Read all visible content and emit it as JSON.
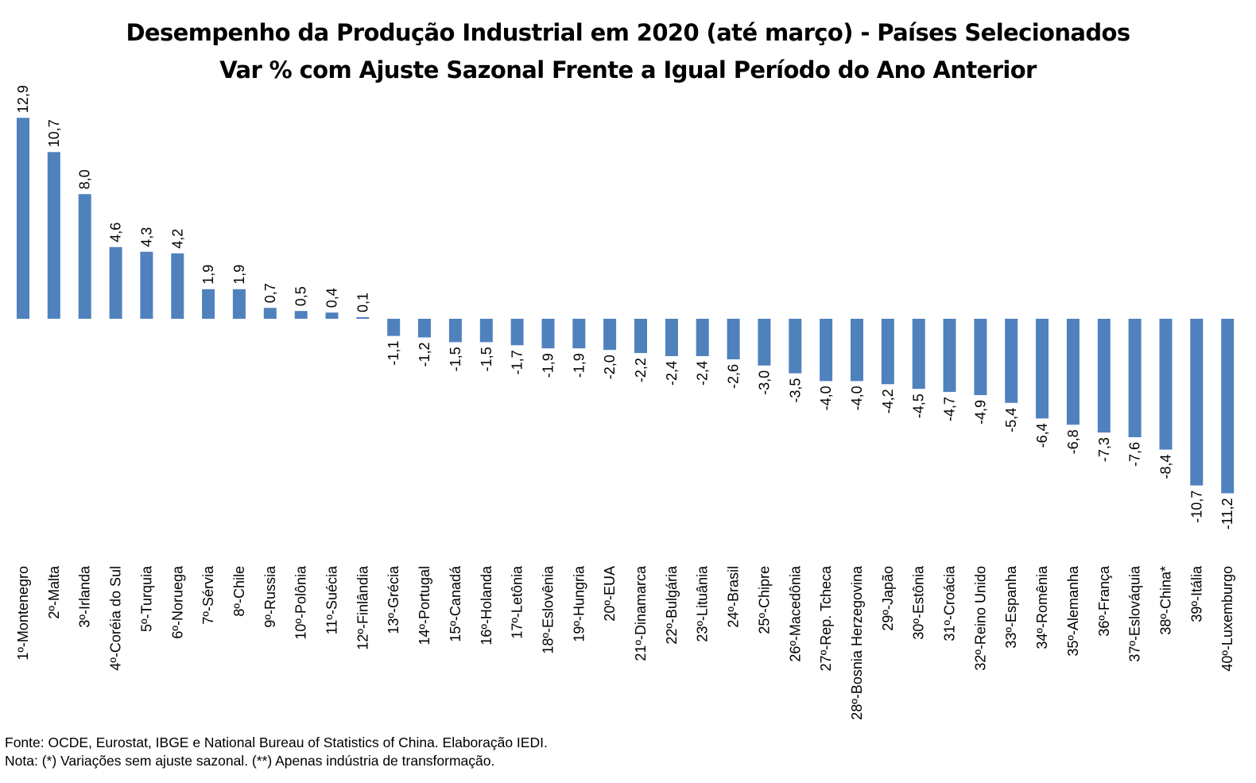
{
  "chart_data": {
    "type": "bar",
    "title": "Desempenho da Produção Industrial em 2020 (até março) - Países Selecionados",
    "subtitle": "Var % com Ajuste Sazonal Frente a Igual Período do Ano Anterior",
    "categories": [
      "1º-Montenegro",
      "2º-Malta",
      "3º-Irlanda",
      "4º-Coréia do Sul",
      "5º-Turquia",
      "6º-Noruega",
      "7º-Sérvia",
      "8º-Chile",
      "9º-Russia",
      "10º-Polônia",
      "11º-Suécia",
      "12º-Finlândia",
      "13º-Grécia",
      "14º-Portugal",
      "15º-Canadá",
      "16º-Holanda",
      "17º-Letônia",
      "18º-Eslovênia",
      "19º-Hungria",
      "20º-EUA",
      "21º-Dinamarca",
      "22º-Bulgária",
      "23º-Lituânia",
      "24º-Brasil",
      "25º-Chipre",
      "26º-Macedônia",
      "27º-Rep. Tcheca",
      "28º-Bosnia Herzegovina",
      "29º-Japão",
      "30º-Estônia",
      "31º-Croácia",
      "32º-Reino Unido",
      "33º-Espanha",
      "34º-Romênia",
      "35º-Alemanha",
      "36º-França",
      "37º-Eslováquia",
      "38º-China*",
      "39º-Itália",
      "40º-Luxemburgo"
    ],
    "values": [
      12.9,
      10.7,
      8.0,
      4.6,
      4.3,
      4.2,
      1.9,
      1.9,
      0.7,
      0.5,
      0.4,
      0.1,
      -1.1,
      -1.2,
      -1.5,
      -1.5,
      -1.7,
      -1.9,
      -1.9,
      -2.0,
      -2.2,
      -2.4,
      -2.4,
      -2.6,
      -3.0,
      -3.5,
      -4.0,
      -4.0,
      -4.2,
      -4.5,
      -4.7,
      -4.9,
      -5.4,
      -6.4,
      -6.8,
      -7.3,
      -7.6,
      -8.4,
      -10.7,
      -11.2
    ],
    "value_labels": [
      "12,9",
      "10,7",
      "8,0",
      "4,6",
      "4,3",
      "4,2",
      "1,9",
      "1,9",
      "0,7",
      "0,5",
      "0,4",
      "0,1",
      "-1,1",
      "-1,2",
      "-1,5",
      "-1,5",
      "-1,7",
      "-1,9",
      "-1,9",
      "-2,0",
      "-2,2",
      "-2,4",
      "-2,4",
      "-2,6",
      "-3,0",
      "-3,5",
      "-4,0",
      "-4,0",
      "-4,2",
      "-4,5",
      "-4,7",
      "-4,9",
      "-5,4",
      "-6,4",
      "-6,8",
      "-7,3",
      "-7,6",
      "-8,4",
      "-10,7",
      "-11,2"
    ],
    "ylim": [
      -11.2,
      12.9
    ],
    "grid": false,
    "legend": "none",
    "bar_color": "#4f81bd"
  },
  "footnotes": {
    "source": "Fonte: OCDE, Eurostat, IBGE e National Bureau of Statistics of China. Elaboração IEDI.",
    "note": "Nota: (*) Variações sem ajuste sazonal. (**) Apenas indústria de transformação."
  }
}
